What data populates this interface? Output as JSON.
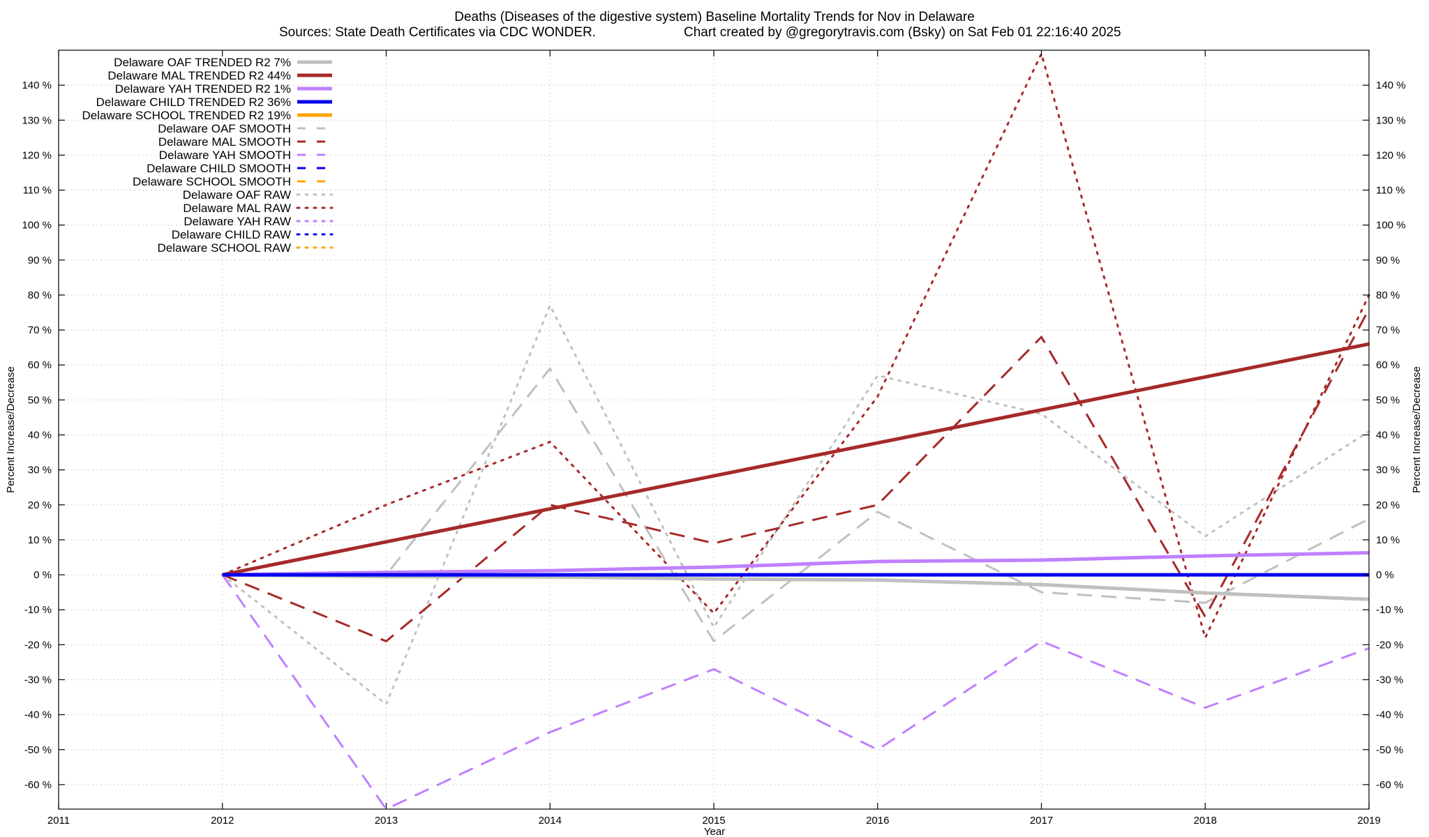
{
  "chart_data": {
    "type": "line",
    "title": "Deaths (Diseases of the digestive system)  Baseline Mortality Trends for Nov in Delaware",
    "subtitle_left": "Sources: State Death Certificates via CDC WONDER.",
    "subtitle_right": "Chart created by @gregorytravis.com (Bsky) on Sat Feb 01 22:16:40 2025",
    "xlabel": "Year",
    "ylabel": "Percent Increase/Decrease",
    "xlim": [
      2011,
      2019
    ],
    "ylim": [
      -67,
      150
    ],
    "x_ticks": [
      2011,
      2012,
      2013,
      2014,
      2015,
      2016,
      2017,
      2018,
      2019
    ],
    "x_tick_labels": [
      "2011",
      "2012",
      "2013",
      "2014",
      "2015",
      "2016",
      "2017",
      "2018",
      "2019"
    ],
    "y_ticks": [
      -60,
      -50,
      -40,
      -30,
      -20,
      -10,
      0,
      10,
      20,
      30,
      40,
      50,
      60,
      70,
      80,
      90,
      100,
      110,
      120,
      130,
      140
    ],
    "y_tick_labels": [
      "-60 %",
      "-50 %",
      "-40 %",
      "-30 %",
      "-20 %",
      "-10 %",
      "0 %",
      "10 %",
      "20 %",
      "30 %",
      "40 %",
      "50 %",
      "60 %",
      "70 %",
      "80 %",
      "90 %",
      "100 %",
      "110 %",
      "120 %",
      "130 %",
      "140 %"
    ],
    "grid": true,
    "legend_position": "top-left",
    "series": [
      {
        "name": "Delaware OAF TRENDED R2  7%",
        "style": "solid",
        "color": "#c0c0c0",
        "width": 5,
        "x": [
          2012,
          2013,
          2014,
          2015,
          2016,
          2017,
          2018,
          2019
        ],
        "values": [
          0,
          -0.5,
          -0.6,
          -1.2,
          -1.5,
          -2.8,
          -5.2,
          -7
        ]
      },
      {
        "name": "Delaware MAL TRENDED R2  44%",
        "style": "solid",
        "color": "#a52a2a",
        "width": 5,
        "x": [
          2012,
          2019
        ],
        "values": [
          0,
          66
        ]
      },
      {
        "name": "Delaware YAH TRENDED R2  1%",
        "style": "solid",
        "color": "#c080ff",
        "width": 5,
        "x": [
          2012,
          2013,
          2014,
          2015,
          2016,
          2017,
          2018,
          2019
        ],
        "values": [
          0,
          0.7,
          1.2,
          2.2,
          3.8,
          4.2,
          5.4,
          6.3
        ]
      },
      {
        "name": "Delaware CHILD TRENDED R2  36%",
        "style": "solid",
        "color": "#0000ee",
        "width": 5,
        "x": [
          2012,
          2019
        ],
        "values": [
          0,
          0
        ]
      },
      {
        "name": "Delaware SCHOOL TRENDED R2  19%",
        "style": "solid",
        "color": "#ffa500",
        "width": 5,
        "x": [],
        "values": []
      },
      {
        "name": "Delaware OAF SMOOTH",
        "style": "dashed",
        "color": "#c0c0c0",
        "width": 3,
        "x": [
          2012,
          2013,
          2014,
          2015,
          2016,
          2017,
          2018,
          2019
        ],
        "values": [
          0,
          0,
          59,
          -19,
          18,
          -5,
          -8,
          16
        ]
      },
      {
        "name": "Delaware MAL SMOOTH",
        "style": "dashed",
        "color": "#a52a2a",
        "width": 3,
        "x": [
          2012,
          2013,
          2014,
          2015,
          2016,
          2017,
          2018,
          2019
        ],
        "values": [
          0,
          -19,
          20,
          9,
          20,
          68,
          -12,
          76
        ]
      },
      {
        "name": "Delaware YAH SMOOTH",
        "style": "dashed",
        "color": "#c080ff",
        "width": 3,
        "x": [
          2012,
          2013,
          2014,
          2015,
          2016,
          2017,
          2018,
          2019
        ],
        "values": [
          0,
          -67,
          -45,
          -27,
          -50,
          -19,
          -38,
          -21
        ]
      },
      {
        "name": "Delaware CHILD SMOOTH",
        "style": "dashed",
        "color": "#0000ee",
        "width": 3,
        "x": [],
        "values": []
      },
      {
        "name": "Delaware SCHOOL SMOOTH",
        "style": "dashed",
        "color": "#ffa500",
        "width": 3,
        "x": [],
        "values": []
      },
      {
        "name": "Delaware OAF RAW",
        "style": "dotted",
        "color": "#c0c0c0",
        "width": 3,
        "x": [
          2012,
          2013,
          2014,
          2015,
          2016,
          2017,
          2018,
          2019
        ],
        "values": [
          0,
          -37,
          77,
          -15,
          57,
          46,
          11,
          41
        ]
      },
      {
        "name": "Delaware MAL RAW",
        "style": "dotted",
        "color": "#a52a2a",
        "width": 3,
        "x": [
          2012,
          2013,
          2014,
          2015,
          2016,
          2017,
          2018,
          2019
        ],
        "values": [
          0,
          20,
          38,
          -11,
          51,
          149,
          -18,
          80
        ]
      },
      {
        "name": "Delaware YAH RAW",
        "style": "dotted",
        "color": "#c080ff",
        "width": 3,
        "x": [],
        "values": []
      },
      {
        "name": "Delaware CHILD RAW",
        "style": "dotted",
        "color": "#0000ee",
        "width": 3,
        "x": [],
        "values": []
      },
      {
        "name": "Delaware SCHOOL RAW",
        "style": "dotted",
        "color": "#ffa500",
        "width": 3,
        "x": [],
        "values": []
      }
    ]
  }
}
